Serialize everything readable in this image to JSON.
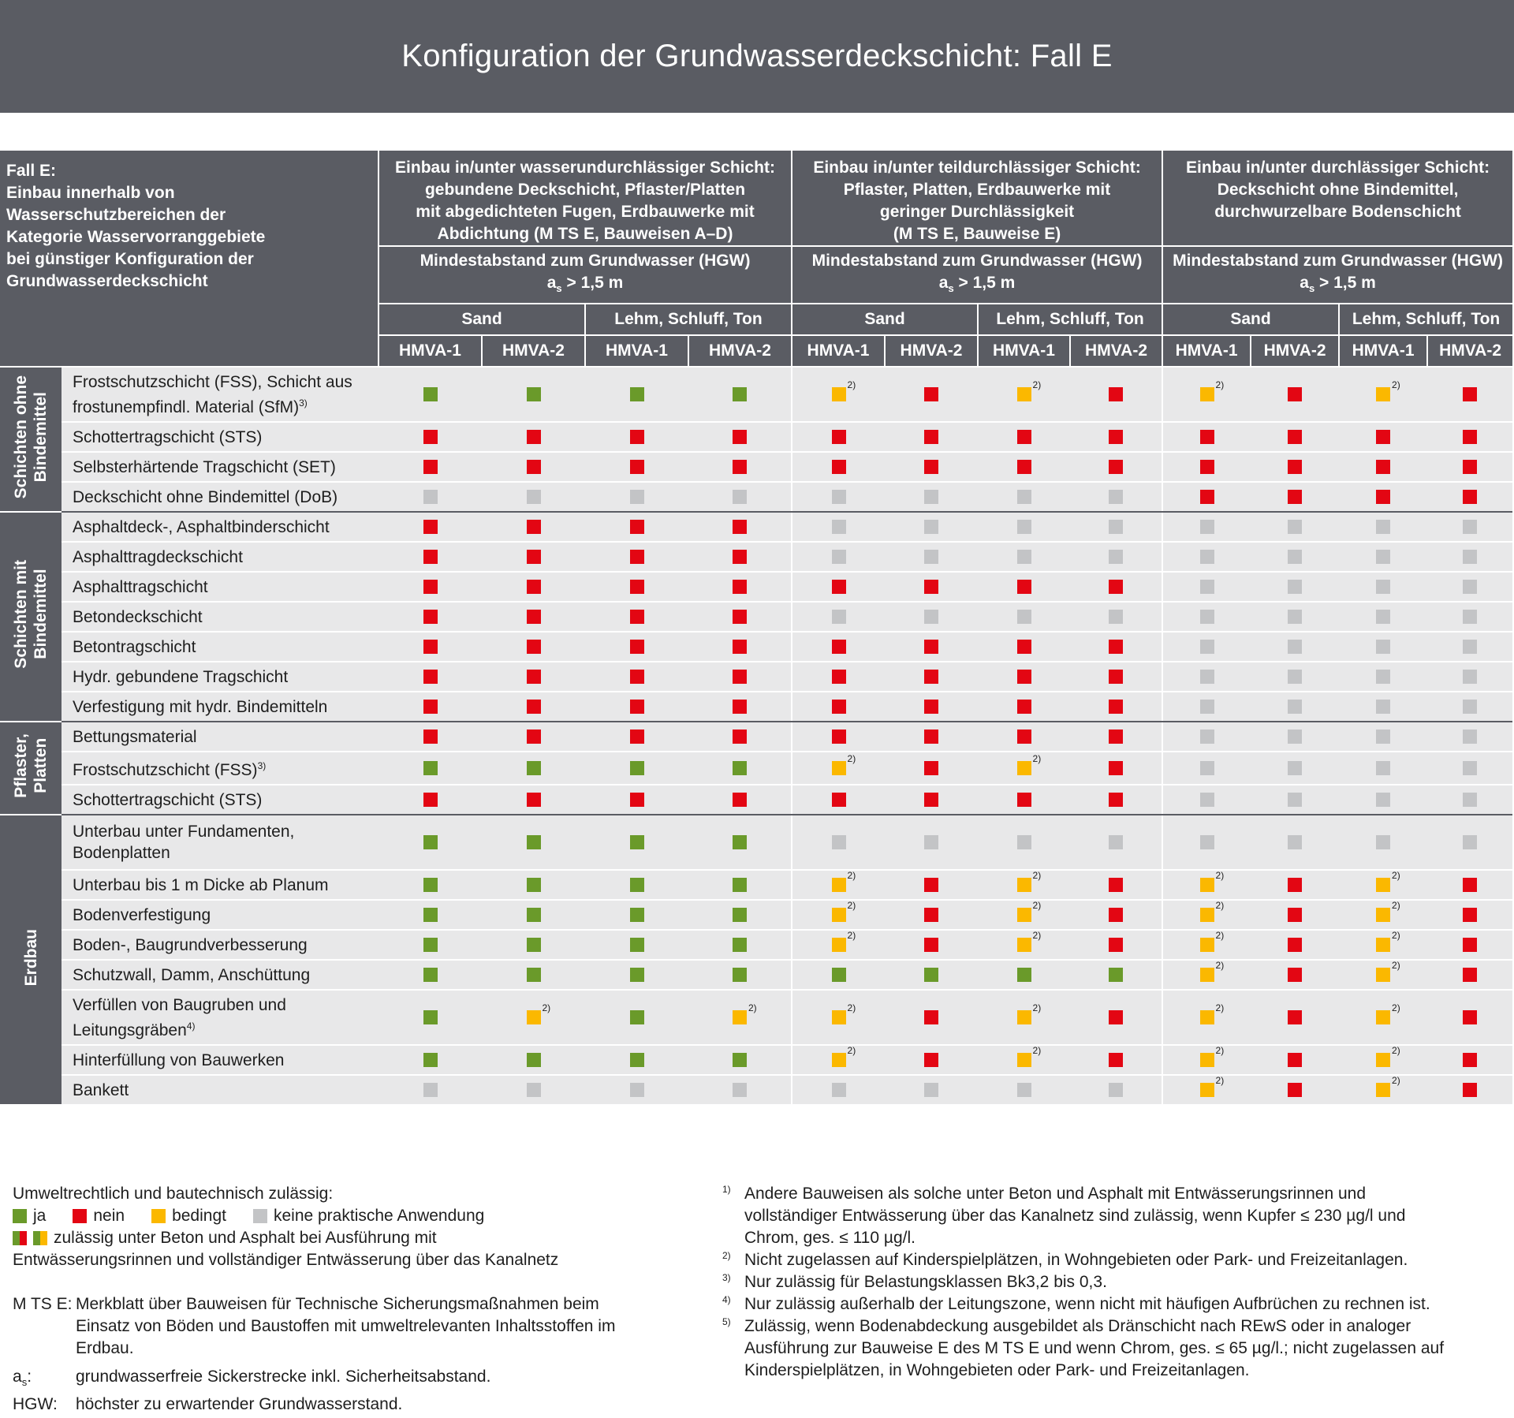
{
  "title": "Konfiguration der Grundwasserdeckschicht: Fall E",
  "corner_text": [
    "Fall E:",
    "Einbau innerhalb von",
    "Wasserschutzbereichen der",
    "Kategorie Wasservorranggebiete",
    "bei günstiger Konfiguration der",
    "Grundwasserdeckschicht"
  ],
  "columns": [
    {
      "header": [
        "Einbau in/unter wasserundurchlässiger Schicht:",
        "gebundene Deckschicht, Pflaster/Platten",
        "mit abgedichteten Fugen, Erdbauwerke mit",
        "Abdichtung (M TS E, Bauweisen A–D)"
      ],
      "distance_title": "Mindestabstand zum Grundwasser (HGW)",
      "distance_a": "a",
      "distance_s": "s",
      "distance_value": " > 1,5 m"
    },
    {
      "header": [
        "Einbau in/unter teildurchlässiger Schicht:",
        "Pflaster, Platten, Erdbauwerke mit",
        "geringer Durchlässigkeit",
        "(M TS E, Bauweise E)"
      ],
      "distance_title": "Mindestabstand zum Grundwasser (HGW)",
      "distance_a": "a",
      "distance_s": "s",
      "distance_value": " > 1,5 m"
    },
    {
      "header": [
        "Einbau in/unter durchlässiger Schicht:",
        "Deckschicht ohne Bindemittel,",
        "durchwurzelbare Bodenschicht"
      ],
      "distance_title": "Mindestabstand zum Grundwasser (HGW)",
      "distance_a": "a",
      "distance_s": "s",
      "distance_value": " > 1,5 m"
    }
  ],
  "soils": [
    "Sand",
    "Lehm, Schluff, Ton"
  ],
  "materials": [
    "HMVA-1",
    "HMVA-2"
  ],
  "groups": [
    {
      "label": [
        "Schichten ohne",
        "Bindemittel"
      ],
      "rows": [
        {
          "label": [
            "Frostschutzschicht (FSS), Schicht aus",
            "frostunempfindl. Material (SfM)"
          ],
          "sup": "3)",
          "tall": true,
          "cells": [
            "ja",
            "ja",
            "ja",
            "ja",
            "bedingt:2)",
            "nein",
            "bedingt:2)",
            "nein",
            "bedingt:2)",
            "nein",
            "bedingt:2)",
            "nein"
          ]
        },
        {
          "label": [
            "Schottertragschicht (STS)"
          ],
          "cells": [
            "nein",
            "nein",
            "nein",
            "nein",
            "nein",
            "nein",
            "nein",
            "nein",
            "nein",
            "nein",
            "nein",
            "nein"
          ]
        },
        {
          "label": [
            "Selbsterhärtende Tragschicht (SET)"
          ],
          "cells": [
            "nein",
            "nein",
            "nein",
            "nein",
            "nein",
            "nein",
            "nein",
            "nein",
            "nein",
            "nein",
            "nein",
            "nein"
          ]
        },
        {
          "label": [
            "Deckschicht ohne Bindemittel (DoB)"
          ],
          "cells": [
            "keine",
            "keine",
            "keine",
            "keine",
            "keine",
            "keine",
            "keine",
            "keine",
            "nein",
            "nein",
            "nein",
            "nein"
          ]
        }
      ]
    },
    {
      "label": [
        "Schichten mit",
        "Bindemittel"
      ],
      "rows": [
        {
          "label": [
            "Asphaltdeck-, Asphaltbinderschicht"
          ],
          "cells": [
            "nein",
            "nein",
            "nein",
            "nein",
            "keine",
            "keine",
            "keine",
            "keine",
            "keine",
            "keine",
            "keine",
            "keine"
          ]
        },
        {
          "label": [
            "Asphalttragdeckschicht"
          ],
          "cells": [
            "nein",
            "nein",
            "nein",
            "nein",
            "keine",
            "keine",
            "keine",
            "keine",
            "keine",
            "keine",
            "keine",
            "keine"
          ]
        },
        {
          "label": [
            "Asphalttragschicht"
          ],
          "cells": [
            "nein",
            "nein",
            "nein",
            "nein",
            "nein",
            "nein",
            "nein",
            "nein",
            "keine",
            "keine",
            "keine",
            "keine"
          ]
        },
        {
          "label": [
            "Betondeckschicht"
          ],
          "cells": [
            "nein",
            "nein",
            "nein",
            "nein",
            "keine",
            "keine",
            "keine",
            "keine",
            "keine",
            "keine",
            "keine",
            "keine"
          ]
        },
        {
          "label": [
            "Betontragschicht"
          ],
          "cells": [
            "nein",
            "nein",
            "nein",
            "nein",
            "nein",
            "nein",
            "nein",
            "nein",
            "keine",
            "keine",
            "keine",
            "keine"
          ]
        },
        {
          "label": [
            "Hydr. gebundene Tragschicht"
          ],
          "cells": [
            "nein",
            "nein",
            "nein",
            "nein",
            "nein",
            "nein",
            "nein",
            "nein",
            "keine",
            "keine",
            "keine",
            "keine"
          ]
        },
        {
          "label": [
            "Verfestigung mit hydr. Bindemitteln"
          ],
          "cells": [
            "nein",
            "nein",
            "nein",
            "nein",
            "nein",
            "nein",
            "nein",
            "nein",
            "keine",
            "keine",
            "keine",
            "keine"
          ]
        }
      ]
    },
    {
      "label": [
        "Pflaster,",
        "Platten"
      ],
      "rows": [
        {
          "label": [
            "Bettungsmaterial"
          ],
          "cells": [
            "nein",
            "nein",
            "nein",
            "nein",
            "nein",
            "nein",
            "nein",
            "nein",
            "keine",
            "keine",
            "keine",
            "keine"
          ]
        },
        {
          "label": [
            "Frostschutzschicht (FSS)"
          ],
          "sup": "3)",
          "cells": [
            "ja",
            "ja",
            "ja",
            "ja",
            "bedingt:2)",
            "nein",
            "bedingt:2)",
            "nein",
            "keine",
            "keine",
            "keine",
            "keine"
          ]
        },
        {
          "label": [
            "Schottertragschicht (STS)"
          ],
          "cells": [
            "nein",
            "nein",
            "nein",
            "nein",
            "nein",
            "nein",
            "nein",
            "nein",
            "keine",
            "keine",
            "keine",
            "keine"
          ]
        }
      ]
    },
    {
      "label": [
        "Erdbau"
      ],
      "rows": [
        {
          "label": [
            "Unterbau unter Fundamenten,",
            "Bodenplatten"
          ],
          "tall": true,
          "cells": [
            "ja",
            "ja",
            "ja",
            "ja",
            "keine",
            "keine",
            "keine",
            "keine",
            "keine",
            "keine",
            "keine",
            "keine"
          ]
        },
        {
          "label": [
            "Unterbau bis 1 m Dicke ab Planum"
          ],
          "cells": [
            "ja",
            "ja",
            "ja",
            "ja",
            "bedingt:2)",
            "nein",
            "bedingt:2)",
            "nein",
            "bedingt:2)",
            "nein",
            "bedingt:2)",
            "nein"
          ]
        },
        {
          "label": [
            "Bodenverfestigung"
          ],
          "cells": [
            "ja",
            "ja",
            "ja",
            "ja",
            "bedingt:2)",
            "nein",
            "bedingt:2)",
            "nein",
            "bedingt:2)",
            "nein",
            "bedingt:2)",
            "nein"
          ]
        },
        {
          "label": [
            "Boden-, Baugrundverbesserung"
          ],
          "cells": [
            "ja",
            "ja",
            "ja",
            "ja",
            "bedingt:2)",
            "nein",
            "bedingt:2)",
            "nein",
            "bedingt:2)",
            "nein",
            "bedingt:2)",
            "nein"
          ]
        },
        {
          "label": [
            "Schutzwall, Damm, Anschüttung"
          ],
          "cells": [
            "ja",
            "ja",
            "ja",
            "ja",
            "ja",
            "ja",
            "ja",
            "ja",
            "bedingt:2)",
            "nein",
            "bedingt:2)",
            "nein"
          ]
        },
        {
          "label": [
            "Verfüllen von Baugruben und",
            "Leitungsgräben"
          ],
          "sup": "4)",
          "tall": true,
          "cells": [
            "ja",
            "bedingt:2)",
            "ja",
            "bedingt:2)",
            "bedingt:2)",
            "nein",
            "bedingt:2)",
            "nein",
            "bedingt:2)",
            "nein",
            "bedingt:2)",
            "nein"
          ]
        },
        {
          "label": [
            "Hinterfüllung von Bauwerken"
          ],
          "cells": [
            "ja",
            "ja",
            "ja",
            "ja",
            "bedingt:2)",
            "nein",
            "bedingt:2)",
            "nein",
            "bedingt:2)",
            "nein",
            "bedingt:2)",
            "nein"
          ]
        },
        {
          "label": [
            "Bankett"
          ],
          "cells": [
            "keine",
            "keine",
            "keine",
            "keine",
            "keine",
            "keine",
            "keine",
            "keine",
            "bedingt:2)",
            "nein",
            "bedingt:2)",
            "nein"
          ]
        }
      ]
    }
  ],
  "legend": {
    "intro": "Umweltrechtlich und bautechnisch zulässig:",
    "ja": "ja",
    "nein": "nein",
    "bedingt": "bedingt",
    "keine": "keine praktische Anwendung",
    "split_line1": "zulässig unter Beton und Asphalt bei Ausführung mit",
    "split_line2": "Entwässerungsrinnen und vollständiger Entwässerung über das Kanalnetz"
  },
  "colors": {
    "ja": "#6a9a2a",
    "nein": "#e30613",
    "bedingt": "#fbb800",
    "keine": "#c3c4c6",
    "header": "#5a5c63"
  },
  "definitions": [
    {
      "key": "M TS E:",
      "lines": [
        "Merkblatt über Bauweisen für Technische Sicherungsmaßnahmen beim",
        "Einsatz von Böden und Baustoffen mit umweltrelevanten Inhaltsstoffen im",
        "Erdbau."
      ]
    },
    {
      "key_a": "a",
      "key_s": "s",
      "key_colon": ":",
      "lines": [
        "grundwasserfreie Sickerstrecke inkl. Sicherheitsabstand."
      ]
    },
    {
      "key": "HGW:",
      "lines": [
        "höchster zu erwartender Grundwasserstand."
      ]
    }
  ],
  "footnotes": [
    {
      "key": "1)",
      "lines": [
        "Andere Bauweisen als solche unter Beton und Asphalt mit Entwässerungsrinnen und",
        "vollständiger Entwässerung über das Kanalnetz sind zulässig, wenn Kupfer ≤ 230 µg/l und",
        "Chrom, ges. ≤ 110 µg/l."
      ]
    },
    {
      "key": "2)",
      "lines": [
        "Nicht zugelassen auf Kinderspielplätzen, in Wohngebieten oder Park- und Freizeitanlagen."
      ]
    },
    {
      "key": "3)",
      "lines": [
        "Nur zulässig für Belastungsklassen Bk3,2 bis 0,3."
      ]
    },
    {
      "key": "4)",
      "lines": [
        "Nur zulässig außerhalb der Leitungszone, wenn nicht mit häufigen Aufbrüchen zu rechnen ist."
      ]
    },
    {
      "key": "5)",
      "lines": [
        "Zulässig, wenn Bodenabdeckung ausgebildet als Dränschicht nach REwS oder in analoger",
        "Ausführung zur Bauweise E des M TS E und wenn Chrom, ges. ≤ 65 µg/l.; nicht zugelassen auf",
        "Kinderspielplätzen, in Wohngebieten oder Park- und Freizeitanlagen."
      ]
    }
  ]
}
